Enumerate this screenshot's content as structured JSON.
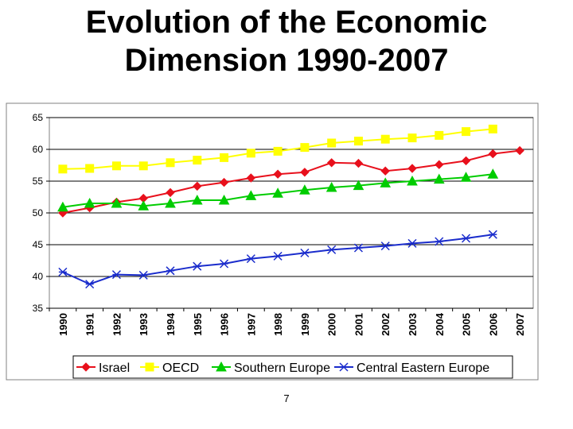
{
  "slide": {
    "title_line1": "Evolution of the Economic",
    "title_line2": "Dimension 1990-2007",
    "page_number": "7"
  },
  "chart_data": {
    "type": "line",
    "x": [
      "1990",
      "1991",
      "1992",
      "1993",
      "1994",
      "1995",
      "1996",
      "1997",
      "1998",
      "1999",
      "2000",
      "2001",
      "2002",
      "2003",
      "2004",
      "2005",
      "2006",
      "2007"
    ],
    "ylim": [
      35,
      65
    ],
    "yticks": [
      35,
      40,
      45,
      50,
      55,
      60,
      65
    ],
    "grid": true,
    "legend_position": "bottom",
    "series": [
      {
        "name": "Israel",
        "color": "#e8101c",
        "marker": "diamond",
        "values": [
          50.0,
          50.8,
          51.7,
          52.3,
          53.2,
          54.2,
          54.8,
          55.5,
          56.1,
          56.4,
          57.9,
          57.8,
          56.6,
          57.0,
          57.6,
          58.2,
          59.3,
          59.8
        ]
      },
      {
        "name": "OECD",
        "color": "#ffff00",
        "marker": "square",
        "values": [
          56.9,
          57.0,
          57.4,
          57.4,
          57.9,
          58.3,
          58.7,
          59.4,
          59.7,
          60.3,
          61.0,
          61.3,
          61.6,
          61.8,
          62.2,
          62.8,
          63.2,
          null
        ]
      },
      {
        "name": "Southern Europe",
        "color": "#00cc00",
        "marker": "triangle",
        "values": [
          50.9,
          51.5,
          51.5,
          51.1,
          51.5,
          52.0,
          52.0,
          52.7,
          53.1,
          53.6,
          54.0,
          54.3,
          54.7,
          55.0,
          55.3,
          55.6,
          56.1,
          null
        ]
      },
      {
        "name": "Central Eastern Europe",
        "color": "#1a2ccc",
        "marker": "asterisk",
        "values": [
          40.7,
          38.8,
          40.3,
          40.2,
          40.9,
          41.6,
          42.0,
          42.8,
          43.2,
          43.7,
          44.2,
          44.5,
          44.8,
          45.2,
          45.5,
          46.0,
          46.6,
          null
        ]
      }
    ]
  }
}
